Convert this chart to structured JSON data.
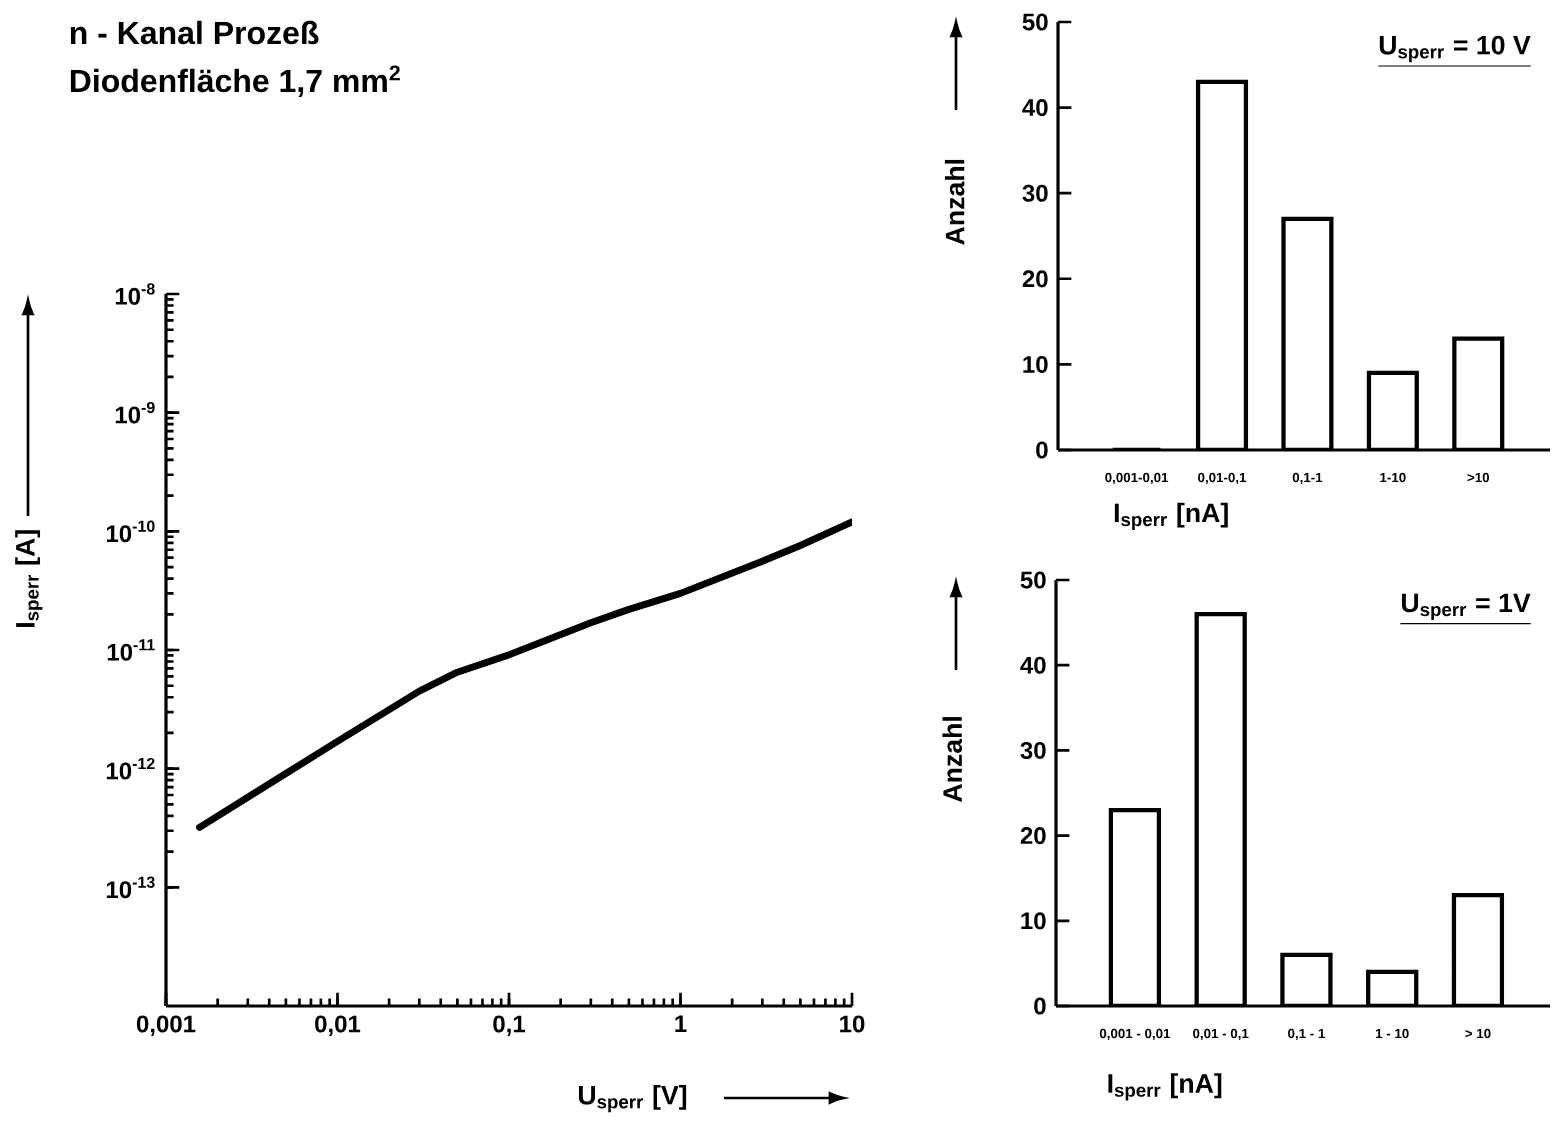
{
  "chart_data": [
    {
      "type": "line",
      "title": "n - Kanal Prozeß",
      "subtitle": "Diodenfläche 1,7 mm$^{2}$",
      "xlabel": "U$_{sperr}$ [V]",
      "ylabel": "I$_{sperr}$ [A]",
      "log": "xy",
      "xlim": [
        0.001,
        10
      ],
      "ylim": [
        1e-14,
        1e-08
      ],
      "xticks": [
        {
          "value": 0.001,
          "label": "0,001"
        },
        {
          "value": 0.01,
          "label": "0,01"
        },
        {
          "value": 0.1,
          "label": "0,1"
        },
        1,
        10
      ],
      "yticks": [
        {
          "value": 1e-13,
          "label": "10$^{-13}$"
        },
        {
          "value": 1e-12,
          "label": "10$^{-12}$"
        },
        {
          "value": 1e-11,
          "label": "10$^{-11}$"
        },
        {
          "value": 1e-10,
          "label": "10$^{-10}$"
        },
        {
          "value": 1e-09,
          "label": "10$^{-9}$"
        },
        {
          "value": 1e-08,
          "label": "10$^{-8}$"
        }
      ],
      "series": [
        {
          "color": "#000000",
          "x": [
            0.00157,
            0.005,
            0.01,
            0.03,
            0.05,
            0.1,
            0.3,
            0.5,
            1,
            3,
            5,
            10
          ],
          "values": [
            3.2e-13,
            9.1e-13,
            1.7e-12,
            4.5e-12,
            6.5e-12,
            9.1e-12,
            1.7e-11,
            2.2e-11,
            3e-11,
            5.6e-11,
            7.6e-11,
            1.2e-10
          ]
        }
      ]
    },
    {
      "type": "bar",
      "xlabel": "I$_{sperr}$ [nA]",
      "ylabel": "Anzahl",
      "annotations": [
        "U$_{sperr}$ = 10 V"
      ],
      "categories": [
        "0,001-0,01",
        "0,01-0,1",
        "0,1-1",
        "1-10",
        ">10"
      ],
      "ylim": [
        0,
        50
      ],
      "yticks": [
        0,
        10,
        20,
        30,
        40,
        50
      ],
      "series": [
        {
          "color": "#ffffff",
          "values": [
            0,
            43,
            27,
            9,
            13
          ]
        }
      ]
    },
    {
      "type": "bar",
      "xlabel": "I$_{sperr}$ [nA]",
      "ylabel": "Anzahl",
      "annotations": [
        "U$_{sperr}$ = 1V"
      ],
      "categories": [
        "0,001 - 0,01",
        "0,01 - 0,1",
        "0,1 - 1",
        "1 - 10",
        "> 10"
      ],
      "ylim": [
        0,
        50
      ],
      "yticks": [
        0,
        10,
        20,
        30,
        40,
        50
      ],
      "series": [
        {
          "color": "#ffffff",
          "values": [
            23,
            46,
            6,
            4,
            13
          ]
        }
      ]
    }
  ]
}
